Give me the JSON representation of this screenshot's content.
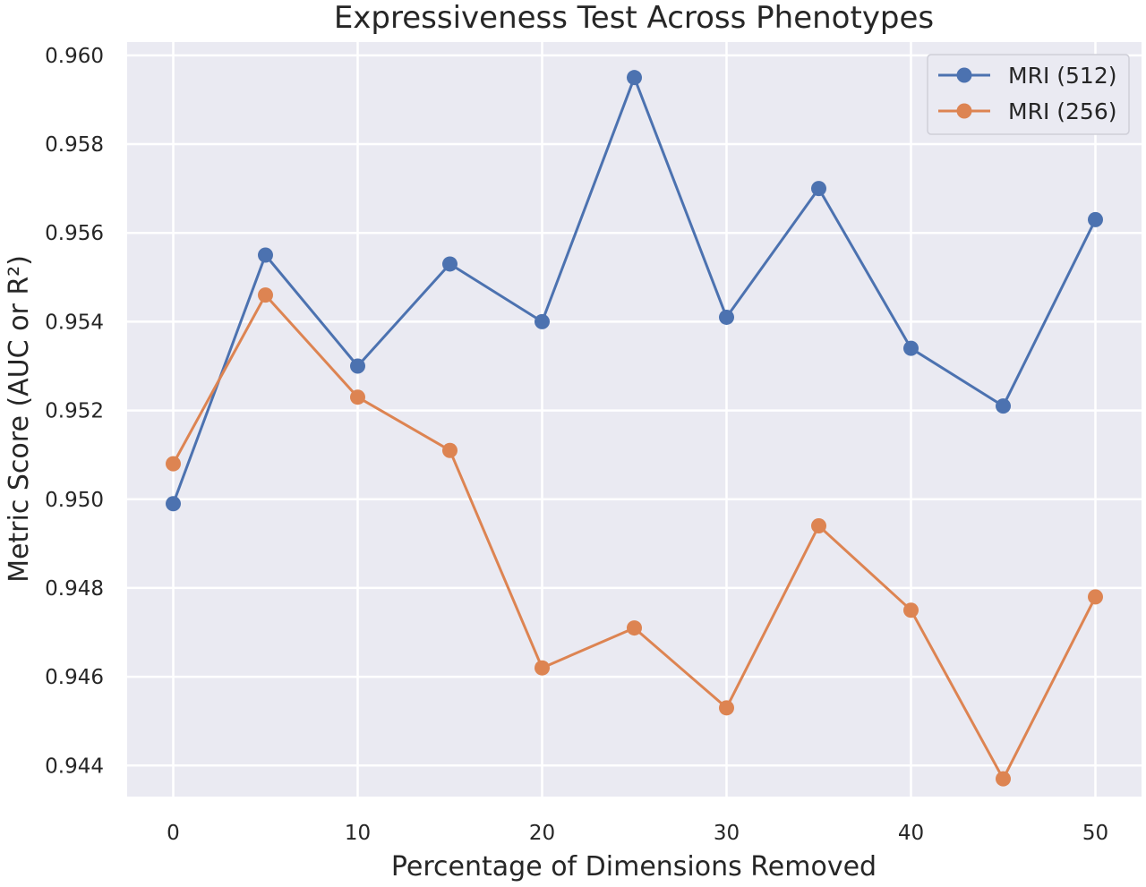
{
  "chart_data": {
    "type": "line",
    "title": "Expressiveness Test Across Phenotypes",
    "xlabel": "Percentage of Dimensions Removed",
    "ylabel": "Metric Score (AUC or R²)",
    "xlim": [
      -2.5,
      52.5
    ],
    "ylim": [
      0.9433,
      0.9603
    ],
    "xticks": [
      0,
      10,
      20,
      30,
      40,
      50
    ],
    "yticks": [
      0.944,
      0.946,
      0.948,
      0.95,
      0.952,
      0.954,
      0.956,
      0.958,
      0.96
    ],
    "ytick_labels": [
      "0.944",
      "0.946",
      "0.948",
      "0.950",
      "0.952",
      "0.954",
      "0.956",
      "0.958",
      "0.960"
    ],
    "x": [
      0,
      5,
      10,
      15,
      20,
      25,
      30,
      35,
      40,
      45,
      50
    ],
    "series": [
      {
        "name": "MRI (512)",
        "color": "#4c72b0",
        "values": [
          0.9499,
          0.9555,
          0.953,
          0.9553,
          0.954,
          0.9595,
          0.9541,
          0.957,
          0.9534,
          0.9521,
          0.9563
        ]
      },
      {
        "name": "MRI (256)",
        "color": "#dd8452",
        "values": [
          0.9508,
          0.9546,
          0.9523,
          0.9511,
          0.9462,
          0.9471,
          0.9453,
          0.9494,
          0.9475,
          0.9437,
          0.9478
        ]
      }
    ],
    "grid": true,
    "legend": "top-right",
    "background_color": "#eaeaf2",
    "grid_color": "#ffffff"
  }
}
